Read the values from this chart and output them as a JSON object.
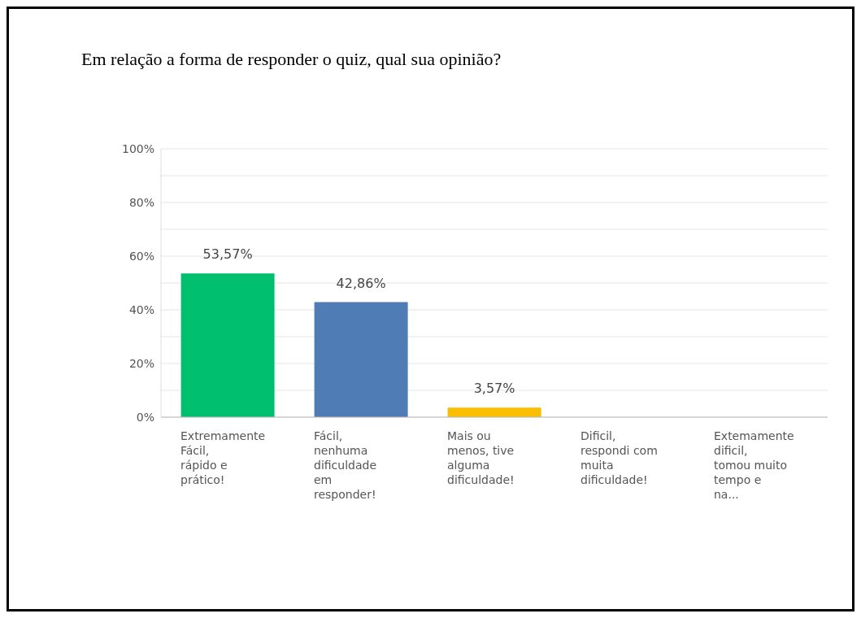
{
  "chart_data": {
    "type": "bar",
    "title": "Em relação a forma de responder o quiz, qual sua opinião?",
    "categories": [
      "Extremamente Fácil, rápido e prático!",
      "Fácil, nenhuma dificuldade em responder!",
      "Mais ou menos, tive alguma dificuldade!",
      "Dificil, respondi com muita dificuldade!",
      "Extemamente dificil, tomou muito tempo e na..."
    ],
    "values": [
      53.57,
      42.86,
      3.57,
      0,
      0
    ],
    "colors": [
      "#00bf6f",
      "#507cb6",
      "#f9be00",
      "#507cb6",
      "#507cb6"
    ],
    "value_labels": [
      "53,57%",
      "42,86%",
      "3,57%",
      null,
      null
    ],
    "ylim": [
      0,
      100
    ],
    "yticks": [
      {
        "value": 0,
        "label": "0%"
      },
      {
        "value": 10,
        "label": null
      },
      {
        "value": 20,
        "label": "20%"
      },
      {
        "value": 30,
        "label": null
      },
      {
        "value": 40,
        "label": "40%"
      },
      {
        "value": 50,
        "label": null
      },
      {
        "value": 60,
        "label": "60%"
      },
      {
        "value": 70,
        "label": null
      },
      {
        "value": 80,
        "label": "80%"
      },
      {
        "value": 90,
        "label": null
      },
      {
        "value": 100,
        "label": "100%"
      }
    ],
    "grid": "y"
  }
}
